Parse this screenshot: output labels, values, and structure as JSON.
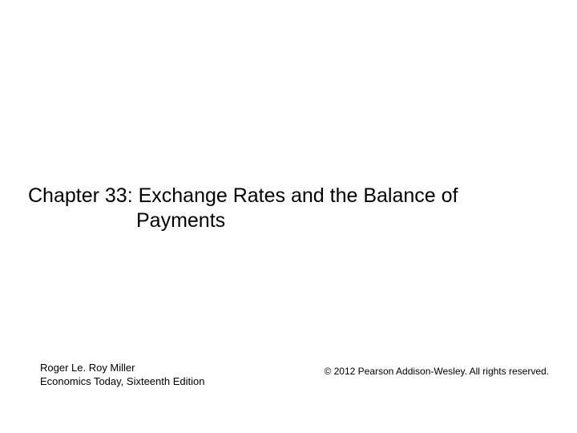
{
  "title": {
    "line1": "Chapter 33: Exchange Rates and the Balance of",
    "line2": "Payments"
  },
  "footer": {
    "author": "Roger Le. Roy Miller",
    "book": "Economics Today, Sixteenth Edition",
    "copyright": "© 2012 Pearson Addison-Wesley. All rights reserved."
  },
  "colors": {
    "background": "#ffffff",
    "text": "#000000"
  },
  "typography": {
    "title_fontsize": 25,
    "footer_fontsize": 13,
    "copyright_fontsize": 12,
    "font_family": "Arial"
  }
}
